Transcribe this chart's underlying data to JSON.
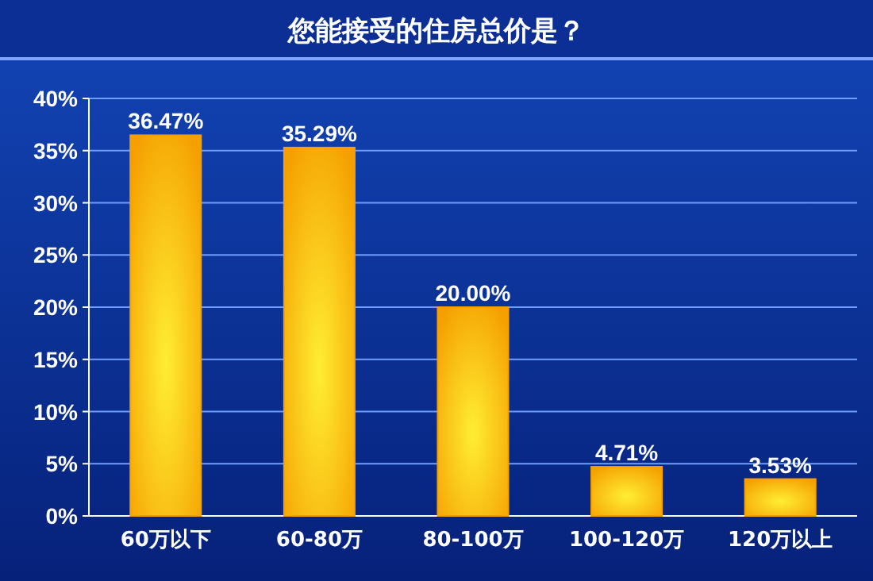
{
  "chart_data": {
    "type": "bar",
    "title": "您能接受的住房总价是？",
    "categories": [
      "60万以下",
      "60-80万",
      "80-100万",
      "100-120万",
      "120万以上"
    ],
    "values": [
      36.47,
      35.29,
      20.0,
      4.71,
      3.53
    ],
    "value_labels": [
      "36.47%",
      "35.29%",
      "20.00%",
      "4.71%",
      "3.53%"
    ],
    "color": "#f5a000",
    "ylim": [
      0,
      40
    ],
    "yticks": [
      {
        "value": 0,
        "label": "0%"
      },
      {
        "value": 5,
        "label": "5%"
      },
      {
        "value": 10,
        "label": "10%"
      },
      {
        "value": 15,
        "label": "15%"
      },
      {
        "value": 20,
        "label": "20%"
      },
      {
        "value": 25,
        "label": "25%"
      },
      {
        "value": 30,
        "label": "30%"
      },
      {
        "value": 35,
        "label": "35%"
      },
      {
        "value": 40,
        "label": "40%"
      }
    ],
    "grid": "y"
  }
}
